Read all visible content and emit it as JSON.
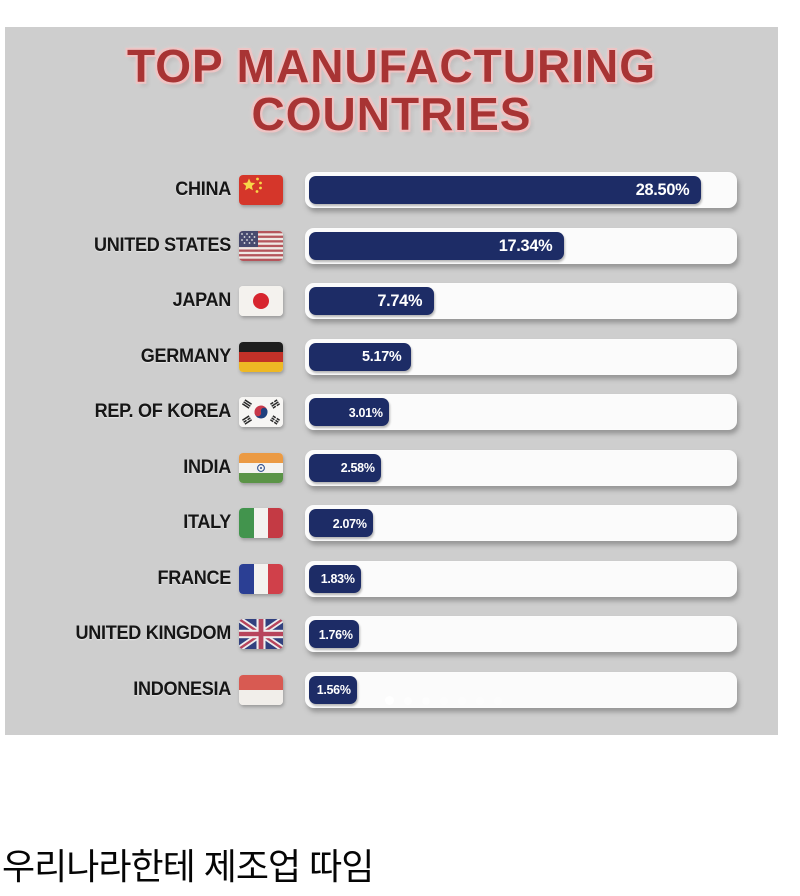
{
  "title": {
    "line1": "TOP MANUFACTURING",
    "line2": "COUNTRIES"
  },
  "caption": "우리나라한테 제조업 따임",
  "colors": {
    "panel_bg": "#cecece",
    "title_red": "#a83434",
    "bar_navy": "#1d2c66",
    "track_white": "#fbfbfb",
    "label_black": "#161616"
  },
  "carousel": {
    "dot_count": 7,
    "active_index": 0
  },
  "chart_data": {
    "type": "bar",
    "orientation": "horizontal",
    "title": "TOP MANUFACTURING COUNTRIES",
    "categories": [
      "CHINA",
      "UNITED STATES",
      "JAPAN",
      "GERMANY",
      "REP. OF KOREA",
      "INDIA",
      "ITALY",
      "FRANCE",
      "UNITED KINGDOM",
      "INDONESIA"
    ],
    "values": [
      28.5,
      17.34,
      7.74,
      5.17,
      3.01,
      2.58,
      2.07,
      1.83,
      1.76,
      1.56
    ],
    "value_labels": [
      "28.50%",
      "17.34%",
      "7.74%",
      "5.17%",
      "3.01%",
      "2.58%",
      "2.07%",
      "1.83%",
      "1.76%",
      "1.56%"
    ],
    "bar_track_pct": [
      92.6,
      60.9,
      30.8,
      25.5,
      20.4,
      18.5,
      16.7,
      13.9,
      13.4,
      13.0
    ],
    "flag_icons": [
      "flag-china-icon",
      "flag-united-states-icon",
      "flag-japan-icon",
      "flag-germany-icon",
      "flag-south-korea-icon",
      "flag-india-icon",
      "flag-italy-icon",
      "flag-france-icon",
      "flag-united-kingdom-icon",
      "flag-indonesia-icon"
    ],
    "legend": null,
    "grid": false
  }
}
